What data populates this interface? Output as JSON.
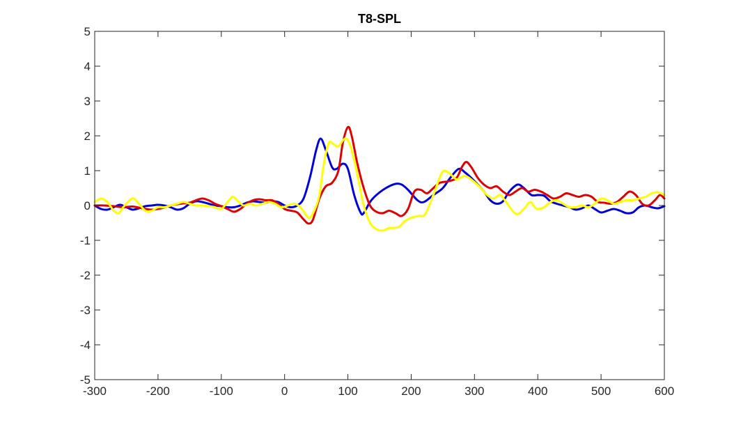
{
  "chart_data": {
    "type": "line",
    "title": "T8-SPL",
    "xlabel": "",
    "ylabel": "",
    "xlim": [
      -300,
      600
    ],
    "ylim": [
      -5,
      5
    ],
    "xticks": [
      -300,
      -200,
      -100,
      0,
      100,
      200,
      300,
      400,
      500,
      600
    ],
    "yticks": [
      -5,
      -4,
      -3,
      -2,
      -1,
      0,
      1,
      2,
      3,
      4,
      5
    ],
    "grid": false,
    "legend": "none",
    "series": [
      {
        "color": "#0000dd",
        "points": [
          [
            -300,
            0.0
          ],
          [
            -290,
            -0.1
          ],
          [
            -280,
            -0.12
          ],
          [
            -270,
            -0.05
          ],
          [
            -260,
            0.02
          ],
          [
            -250,
            -0.05
          ],
          [
            -240,
            -0.12
          ],
          [
            -230,
            -0.08
          ],
          [
            -220,
            -0.02
          ],
          [
            -210,
            0.0
          ],
          [
            -200,
            0.02
          ],
          [
            -190,
            0.0
          ],
          [
            -180,
            -0.05
          ],
          [
            -170,
            -0.12
          ],
          [
            -160,
            -0.08
          ],
          [
            -150,
            0.05
          ],
          [
            -140,
            0.12
          ],
          [
            -130,
            0.1
          ],
          [
            -120,
            0.05
          ],
          [
            -110,
            0.0
          ],
          [
            -100,
            -0.02
          ],
          [
            -90,
            -0.05
          ],
          [
            -80,
            -0.05
          ],
          [
            -70,
            0.0
          ],
          [
            -60,
            0.08
          ],
          [
            -50,
            0.12
          ],
          [
            -40,
            0.1
          ],
          [
            -30,
            0.08
          ],
          [
            -20,
            0.12
          ],
          [
            -10,
            0.1
          ],
          [
            0,
            0.0
          ],
          [
            10,
            -0.05
          ],
          [
            20,
            0.0
          ],
          [
            30,
            0.2
          ],
          [
            40,
            0.8
          ],
          [
            50,
            1.6
          ],
          [
            57,
            1.92
          ],
          [
            65,
            1.6
          ],
          [
            75,
            1.1
          ],
          [
            82,
            1.05
          ],
          [
            92,
            1.2
          ],
          [
            100,
            1.05
          ],
          [
            110,
            0.3
          ],
          [
            120,
            -0.2
          ],
          [
            125,
            -0.22
          ],
          [
            135,
            0.1
          ],
          [
            145,
            0.3
          ],
          [
            160,
            0.5
          ],
          [
            175,
            0.62
          ],
          [
            185,
            0.6
          ],
          [
            195,
            0.45
          ],
          [
            210,
            0.15
          ],
          [
            220,
            0.1
          ],
          [
            235,
            0.3
          ],
          [
            250,
            0.5
          ],
          [
            262,
            0.8
          ],
          [
            275,
            1.05
          ],
          [
            285,
            0.95
          ],
          [
            300,
            0.7
          ],
          [
            315,
            0.4
          ],
          [
            325,
            0.15
          ],
          [
            335,
            0.05
          ],
          [
            345,
            0.12
          ],
          [
            355,
            0.4
          ],
          [
            368,
            0.6
          ],
          [
            378,
            0.5
          ],
          [
            390,
            0.3
          ],
          [
            400,
            0.3
          ],
          [
            410,
            0.28
          ],
          [
            420,
            0.12
          ],
          [
            430,
            0.05
          ],
          [
            440,
            0.0
          ],
          [
            450,
            -0.05
          ],
          [
            460,
            -0.12
          ],
          [
            470,
            -0.08
          ],
          [
            480,
            0.0
          ],
          [
            490,
            -0.1
          ],
          [
            500,
            -0.2
          ],
          [
            510,
            -0.15
          ],
          [
            520,
            -0.1
          ],
          [
            530,
            -0.15
          ],
          [
            540,
            -0.22
          ],
          [
            550,
            -0.2
          ],
          [
            560,
            -0.05
          ],
          [
            570,
            0.0
          ],
          [
            580,
            -0.05
          ],
          [
            590,
            -0.08
          ],
          [
            600,
            -0.02
          ]
        ]
      },
      {
        "color": "#e00000",
        "points": [
          [
            -300,
            0.0
          ],
          [
            -285,
            0.0
          ],
          [
            -270,
            -0.02
          ],
          [
            -255,
            -0.05
          ],
          [
            -240,
            -0.03
          ],
          [
            -225,
            -0.08
          ],
          [
            -210,
            -0.12
          ],
          [
            -195,
            -0.08
          ],
          [
            -180,
            0.0
          ],
          [
            -165,
            0.05
          ],
          [
            -150,
            0.08
          ],
          [
            -140,
            0.15
          ],
          [
            -130,
            0.2
          ],
          [
            -120,
            0.15
          ],
          [
            -110,
            0.05
          ],
          [
            -100,
            -0.02
          ],
          [
            -90,
            -0.1
          ],
          [
            -80,
            -0.18
          ],
          [
            -70,
            -0.1
          ],
          [
            -60,
            0.05
          ],
          [
            -50,
            0.15
          ],
          [
            -40,
            0.18
          ],
          [
            -30,
            0.15
          ],
          [
            -20,
            0.15
          ],
          [
            -10,
            0.05
          ],
          [
            0,
            -0.1
          ],
          [
            10,
            -0.15
          ],
          [
            20,
            -0.2
          ],
          [
            30,
            -0.4
          ],
          [
            38,
            -0.52
          ],
          [
            45,
            -0.4
          ],
          [
            55,
            0.2
          ],
          [
            65,
            0.55
          ],
          [
            75,
            0.65
          ],
          [
            85,
            1.0
          ],
          [
            92,
            1.8
          ],
          [
            100,
            2.25
          ],
          [
            106,
            2.0
          ],
          [
            115,
            1.2
          ],
          [
            125,
            0.5
          ],
          [
            135,
            0.0
          ],
          [
            145,
            -0.18
          ],
          [
            155,
            -0.22
          ],
          [
            165,
            -0.15
          ],
          [
            175,
            -0.22
          ],
          [
            185,
            -0.3
          ],
          [
            195,
            -0.1
          ],
          [
            205,
            0.4
          ],
          [
            215,
            0.45
          ],
          [
            225,
            0.35
          ],
          [
            235,
            0.5
          ],
          [
            245,
            0.65
          ],
          [
            260,
            0.7
          ],
          [
            272,
            0.8
          ],
          [
            280,
            1.1
          ],
          [
            287,
            1.25
          ],
          [
            295,
            1.1
          ],
          [
            305,
            0.8
          ],
          [
            315,
            0.6
          ],
          [
            325,
            0.5
          ],
          [
            335,
            0.55
          ],
          [
            345,
            0.4
          ],
          [
            355,
            0.3
          ],
          [
            365,
            0.4
          ],
          [
            375,
            0.5
          ],
          [
            385,
            0.4
          ],
          [
            395,
            0.45
          ],
          [
            405,
            0.4
          ],
          [
            415,
            0.3
          ],
          [
            425,
            0.2
          ],
          [
            435,
            0.25
          ],
          [
            445,
            0.35
          ],
          [
            455,
            0.3
          ],
          [
            465,
            0.25
          ],
          [
            475,
            0.3
          ],
          [
            485,
            0.25
          ],
          [
            495,
            0.1
          ],
          [
            505,
            0.08
          ],
          [
            515,
            0.05
          ],
          [
            525,
            0.1
          ],
          [
            535,
            0.25
          ],
          [
            545,
            0.4
          ],
          [
            555,
            0.3
          ],
          [
            565,
            0.05
          ],
          [
            575,
            0.0
          ],
          [
            585,
            0.15
          ],
          [
            593,
            0.3
          ],
          [
            600,
            0.2
          ]
        ]
      },
      {
        "color": "#ffff00",
        "points": [
          [
            -300,
            0.1
          ],
          [
            -290,
            0.2
          ],
          [
            -280,
            0.1
          ],
          [
            -270,
            -0.15
          ],
          [
            -262,
            -0.22
          ],
          [
            -255,
            -0.05
          ],
          [
            -245,
            0.15
          ],
          [
            -238,
            0.2
          ],
          [
            -230,
            0.05
          ],
          [
            -220,
            -0.15
          ],
          [
            -210,
            -0.15
          ],
          [
            -200,
            -0.05
          ],
          [
            -190,
            -0.05
          ],
          [
            -180,
            0.0
          ],
          [
            -170,
            0.05
          ],
          [
            -160,
            0.1
          ],
          [
            -150,
            0.05
          ],
          [
            -140,
            0.0
          ],
          [
            -130,
            0.0
          ],
          [
            -120,
            -0.02
          ],
          [
            -110,
            -0.05
          ],
          [
            -100,
            -0.1
          ],
          [
            -90,
            0.1
          ],
          [
            -82,
            0.25
          ],
          [
            -75,
            0.15
          ],
          [
            -65,
            0.0
          ],
          [
            -55,
            0.05
          ],
          [
            -45,
            0.0
          ],
          [
            -35,
            0.05
          ],
          [
            -25,
            0.1
          ],
          [
            -15,
            0.05
          ],
          [
            -5,
            -0.05
          ],
          [
            5,
            0.0
          ],
          [
            15,
            0.05
          ],
          [
            25,
            -0.05
          ],
          [
            35,
            -0.3
          ],
          [
            40,
            -0.35
          ],
          [
            48,
            -0.1
          ],
          [
            55,
            0.3
          ],
          [
            62,
            1.2
          ],
          [
            70,
            1.8
          ],
          [
            78,
            1.75
          ],
          [
            85,
            1.7
          ],
          [
            95,
            1.92
          ],
          [
            102,
            1.8
          ],
          [
            110,
            1.3
          ],
          [
            118,
            0.6
          ],
          [
            125,
            0.0
          ],
          [
            135,
            -0.5
          ],
          [
            145,
            -0.68
          ],
          [
            155,
            -0.72
          ],
          [
            165,
            -0.65
          ],
          [
            180,
            -0.62
          ],
          [
            190,
            -0.45
          ],
          [
            200,
            -0.35
          ],
          [
            212,
            -0.3
          ],
          [
            222,
            -0.25
          ],
          [
            235,
            0.3
          ],
          [
            245,
            0.8
          ],
          [
            252,
            1.0
          ],
          [
            262,
            0.9
          ],
          [
            272,
            0.75
          ],
          [
            285,
            0.85
          ],
          [
            298,
            0.7
          ],
          [
            310,
            0.5
          ],
          [
            320,
            0.3
          ],
          [
            330,
            0.2
          ],
          [
            340,
            0.3
          ],
          [
            350,
            0.1
          ],
          [
            360,
            -0.15
          ],
          [
            368,
            -0.25
          ],
          [
            378,
            -0.1
          ],
          [
            388,
            0.1
          ],
          [
            395,
            -0.05
          ],
          [
            400,
            -0.1
          ],
          [
            410,
            -0.05
          ],
          [
            420,
            0.1
          ],
          [
            430,
            0.15
          ],
          [
            440,
            0.05
          ],
          [
            450,
            -0.05
          ],
          [
            460,
            -0.05
          ],
          [
            470,
            0.0
          ],
          [
            480,
            -0.05
          ],
          [
            490,
            0.05
          ],
          [
            500,
            0.2
          ],
          [
            510,
            0.15
          ],
          [
            520,
            0.05
          ],
          [
            530,
            0.1
          ],
          [
            540,
            0.15
          ],
          [
            550,
            0.15
          ],
          [
            560,
            0.2
          ],
          [
            570,
            0.25
          ],
          [
            580,
            0.35
          ],
          [
            590,
            0.38
          ],
          [
            600,
            0.3
          ]
        ]
      }
    ]
  }
}
